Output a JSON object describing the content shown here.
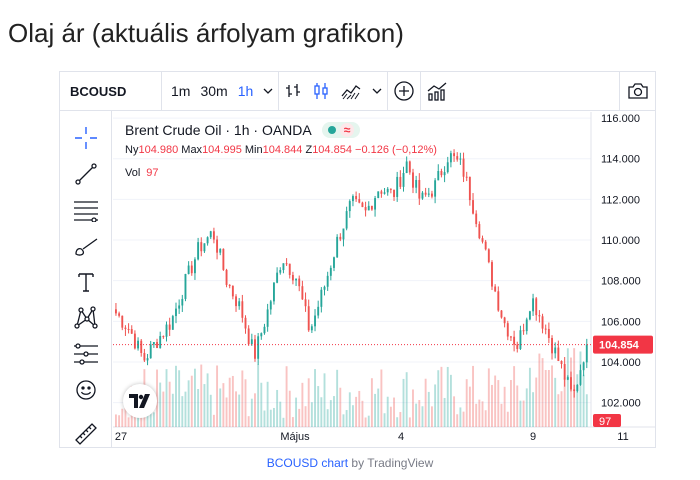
{
  "page": {
    "title": "Olaj ár (aktuális árfolyam grafikon)"
  },
  "toolbar": {
    "symbol": "BCOUSD",
    "timeframes": [
      "1m",
      "30m",
      "1h"
    ],
    "active_timeframe": "1h",
    "icons": [
      "chevron-down-icon",
      "bar-style-icon",
      "candle-style-icon",
      "area-style-icon",
      "chevron-down-icon",
      "plus-circle-icon",
      "indicators-icon",
      "camera-icon"
    ]
  },
  "left_tools": [
    "crosshair-icon",
    "trendline-icon",
    "fib-lines-icon",
    "brush-icon",
    "text-icon",
    "pattern-icon",
    "prediction-icon",
    "emoji-icon",
    "ruler-icon"
  ],
  "legend": {
    "name": "Brent Crude Oil · 1h · OANDA",
    "open_label": "Ny",
    "open": "104.980",
    "high_label": "Max",
    "high": "104.995",
    "low_label": "Min",
    "low": "104.844",
    "close_label": "Z",
    "close": "104.854",
    "change": "−0.126 (−0,12%)",
    "vol_label": "Vol",
    "vol": "97",
    "status_symbol": "≈"
  },
  "chart_data": {
    "type": "candlestick",
    "y_axis": {
      "ticks": [
        "116.000",
        "114.000",
        "112.000",
        "110.000",
        "108.000",
        "106.000",
        "104.000",
        "102.000"
      ],
      "range": [
        100.8,
        116.3
      ]
    },
    "x_axis": {
      "ticks": [
        "27",
        "Május",
        "4",
        "9",
        "11"
      ]
    },
    "last_price": "104.854",
    "last_volume": "97",
    "colors": {
      "up": "#26a69a",
      "down": "#ef5350",
      "price_line": "#f23645"
    },
    "close_path": [
      106.4,
      105.6,
      104.1,
      105.1,
      106.0,
      107.9,
      109.6,
      110.4,
      108.0,
      106.6,
      104.3,
      106.6,
      109.2,
      108.2,
      105.5,
      107.6,
      110.0,
      111.8,
      111.3,
      112.6,
      112.2,
      113.8,
      111.9,
      112.6,
      114.2,
      113.6,
      111.2,
      108.4,
      106.0,
      104.8,
      107.2,
      105.7,
      104.0,
      102.2,
      105.0
    ]
  },
  "footer": {
    "link": "BCOUSD chart",
    "by": " by TradingView"
  }
}
